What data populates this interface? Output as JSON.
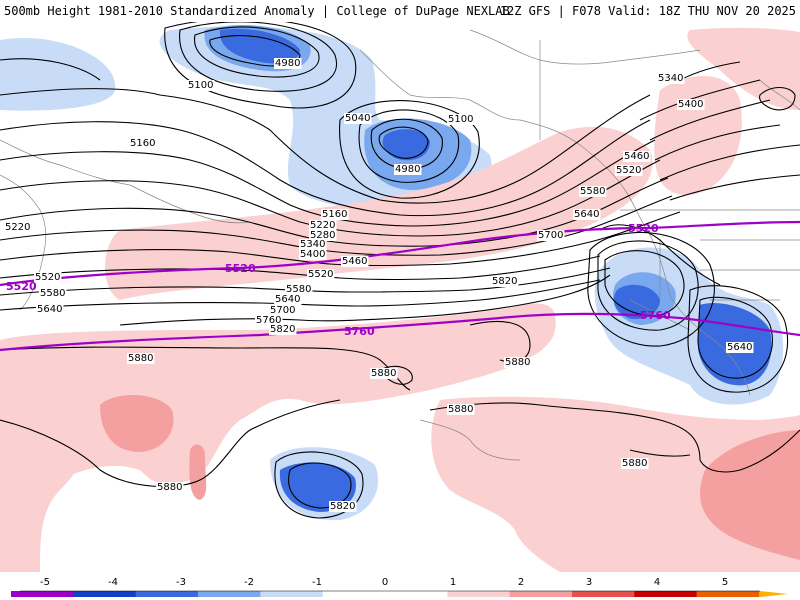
{
  "header": {
    "left_title": "500mb Height 1981-2010 Standardized Anomaly | College of DuPage NEXLAB",
    "right_title": "12Z GFS | F078 Valid: 18Z THU NOV 20 2025"
  },
  "contour_labels": {
    "l_4980_a": "4980",
    "l_4980_b": "4980",
    "l_5040": "5040",
    "l_5100_a": "5100",
    "l_5100_b": "5100",
    "l_5160_a": "5160",
    "l_5160_b": "5160",
    "l_5220_a": "5220",
    "l_5220_b": "5220",
    "l_5280": "5280",
    "l_5340_a": "5340",
    "l_5340_b": "5340",
    "l_5400_a": "5400",
    "l_5400_b": "5400",
    "l_5460_a": "5460",
    "l_5460_b": "5460",
    "l_5520_a": "5520",
    "l_5520_b": "5520",
    "l_5520_c": "5520",
    "l_5580_a": "5580",
    "l_5580_b": "5580",
    "l_5580_c": "5580",
    "l_5640_a": "5640",
    "l_5640_b": "5640",
    "l_5640_c": "5640",
    "l_5640_d": "5640",
    "l_5700_a": "5700",
    "l_5700_b": "5700",
    "l_5760_a": "5760",
    "l_5820_a": "5820",
    "l_5820_b": "5820",
    "l_5820_c": "5820",
    "l_5880_a": "5880",
    "l_5880_b": "5880",
    "l_5880_c": "5880",
    "l_5880_d": "5880",
    "l_5880_e": "5880",
    "l_5880_f": "5880"
  },
  "highlight_labels": {
    "p5520_a": "5520",
    "p5520_b": "5520",
    "p5520_c": "5520",
    "p5760_a": "5760",
    "p5760_b": "5760"
  },
  "colorbar": {
    "ticks": [
      "-5",
      "-4",
      "-3",
      "-2",
      "-1",
      "0",
      "1",
      "2",
      "3",
      "4",
      "5"
    ],
    "colors": [
      "#e060e0",
      "#9a00c8",
      "#1040c8",
      "#3a6ae0",
      "#7aa8ee",
      "#c8dcf8",
      "#ffffff",
      "#ffffff",
      "#fad0d0",
      "#f4a0a0",
      "#e85050",
      "#c80000",
      "#e86000",
      "#ffb000"
    ],
    "highlight_color": "#a000c8"
  }
}
